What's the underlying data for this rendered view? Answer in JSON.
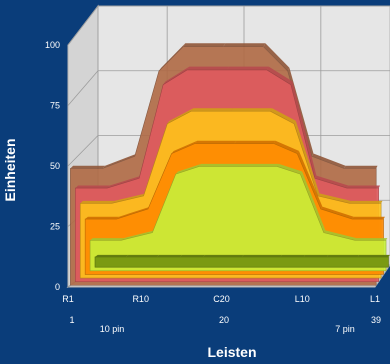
{
  "chart_data": {
    "type": "area",
    "style": "3d-stacked-ribbons",
    "xlabel": "Leisten",
    "ylabel": "Einheiten",
    "ylim": [
      0,
      100
    ],
    "yticks": [
      "0",
      "25",
      "50",
      "75",
      "100"
    ],
    "x_tick_labels": [
      "R1",
      "R10",
      "C20",
      "L10",
      "L1"
    ],
    "x_tick_numbers": [
      "1",
      "20",
      "39"
    ],
    "x_tick_pins": [
      "10 pin",
      "7 pin"
    ],
    "x": [
      1,
      5,
      9,
      12,
      15,
      20,
      25,
      28,
      31,
      35,
      39
    ],
    "grid": true,
    "series": [
      {
        "color": "#7a9a12",
        "values": [
          4,
          4,
          4,
          4,
          4,
          4,
          4,
          4,
          4,
          4,
          4
        ]
      },
      {
        "color": "#c8f03a",
        "values": [
          12,
          12,
          15,
          38,
          41,
          41,
          41,
          38,
          15,
          12,
          12
        ]
      },
      {
        "color": "#ff8a00",
        "values": [
          22,
          22,
          26,
          48,
          52,
          52,
          52,
          48,
          26,
          22,
          22
        ]
      },
      {
        "color": "#ffc21a",
        "values": [
          30,
          30,
          33,
          62,
          67,
          67,
          67,
          62,
          33,
          30,
          30
        ]
      },
      {
        "color": "#e05a5f",
        "values": [
          38,
          38,
          42,
          80,
          86,
          86,
          86,
          80,
          42,
          38,
          38
        ]
      },
      {
        "color": "#b06a45",
        "values": [
          48,
          48,
          53,
          88,
          98,
          98,
          98,
          88,
          53,
          48,
          48
        ]
      }
    ]
  }
}
